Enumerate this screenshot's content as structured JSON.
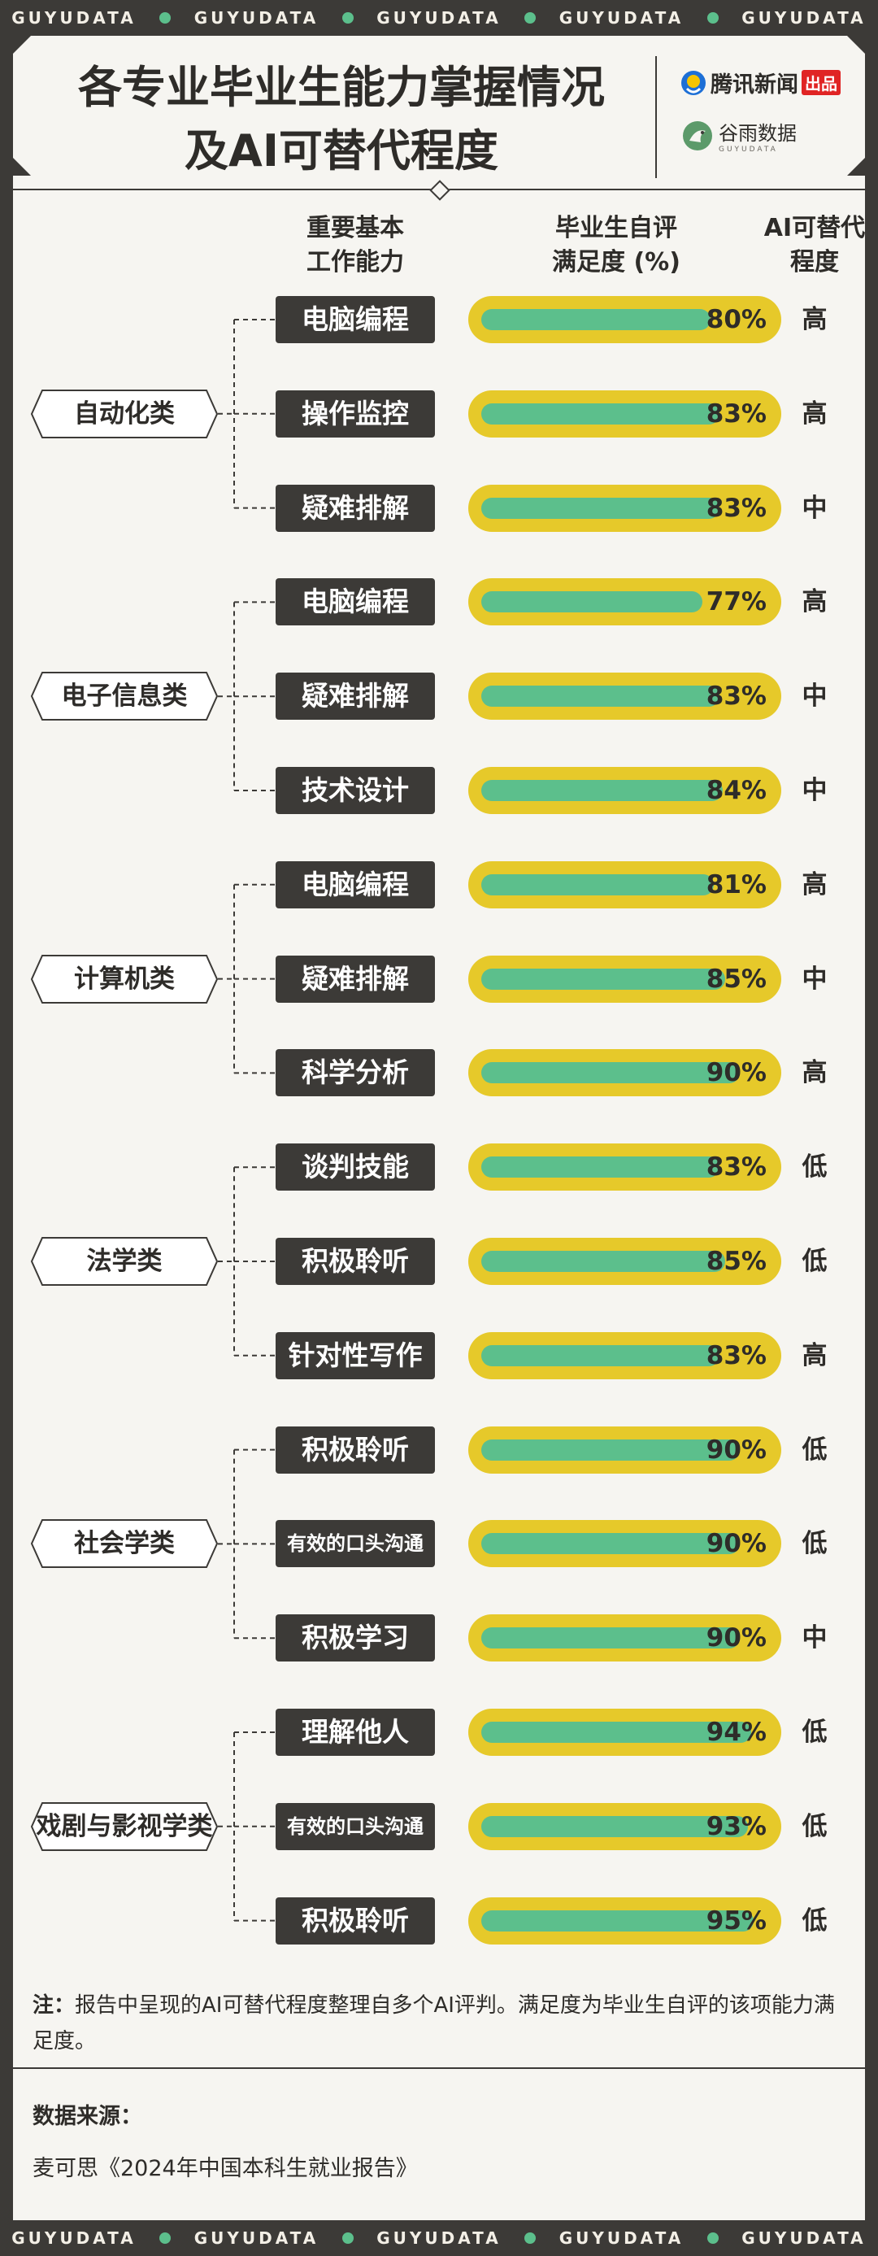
{
  "brand_band": {
    "text": "GUYUDATA",
    "repeat": 5,
    "dot_color": "#5cbf8c"
  },
  "header": {
    "title_line1": "各专业毕业生能力掌握情况",
    "title_line2": "及AI可替代程度",
    "logo1_text": "腾讯新闻",
    "logo1_badge": "出品",
    "logo2_text": "谷雨数据",
    "logo2_sub": "GUYUDATA"
  },
  "columns": {
    "skill_header_1": "重要基本",
    "skill_header_2": "工作能力",
    "score_header_1": "毕业生自评",
    "score_header_2": "满足度 (%)",
    "ai_header_1": "AI可替代",
    "ai_header_2": "程度"
  },
  "colors": {
    "bar_bg": "#e6c92a",
    "bar_fill": "#5cbf8c",
    "dark": "#3c3a37"
  },
  "chart_data": {
    "type": "bar",
    "title": "各专业毕业生能力掌握情况及AI可替代程度",
    "xlabel": "",
    "ylabel": "毕业生自评满足度 (%)",
    "ylim": [
      0,
      100
    ],
    "groups": [
      {
        "category": "自动化类",
        "items": [
          {
            "skill": "电脑编程",
            "value": 80,
            "label": "80%",
            "ai": "高"
          },
          {
            "skill": "操作监控",
            "value": 83,
            "label": "83%",
            "ai": "高"
          },
          {
            "skill": "疑难排解",
            "value": 83,
            "label": "83%",
            "ai": "中"
          }
        ]
      },
      {
        "category": "电子信息类",
        "items": [
          {
            "skill": "电脑编程",
            "value": 77,
            "label": "77%",
            "ai": "高"
          },
          {
            "skill": "疑难排解",
            "value": 83,
            "label": "83%",
            "ai": "中"
          },
          {
            "skill": "技术设计",
            "value": 84,
            "label": "84%",
            "ai": "中"
          }
        ]
      },
      {
        "category": "计算机类",
        "items": [
          {
            "skill": "电脑编程",
            "value": 81,
            "label": "81%",
            "ai": "高"
          },
          {
            "skill": "疑难排解",
            "value": 85,
            "label": "85%",
            "ai": "中"
          },
          {
            "skill": "科学分析",
            "value": 90,
            "label": "90%",
            "ai": "高"
          }
        ]
      },
      {
        "category": "法学类",
        "items": [
          {
            "skill": "谈判技能",
            "value": 83,
            "label": "83%",
            "ai": "低"
          },
          {
            "skill": "积极聆听",
            "value": 85,
            "label": "85%",
            "ai": "低"
          },
          {
            "skill": "针对性写作",
            "value": 83,
            "label": "83%",
            "ai": "高"
          }
        ]
      },
      {
        "category": "社会学类",
        "items": [
          {
            "skill": "积极聆听",
            "value": 90,
            "label": "90%",
            "ai": "低"
          },
          {
            "skill": "有效的口头沟通",
            "value": 90,
            "label": "90%",
            "ai": "低"
          },
          {
            "skill": "积极学习",
            "value": 90,
            "label": "90%",
            "ai": "中"
          }
        ]
      },
      {
        "category": "戏剧与影视学类",
        "items": [
          {
            "skill": "理解他人",
            "value": 94,
            "label": "94%",
            "ai": "低"
          },
          {
            "skill": "有效的口头沟通",
            "value": 93,
            "label": "93%",
            "ai": "低"
          },
          {
            "skill": "积极聆听",
            "value": 95,
            "label": "95%",
            "ai": "低"
          }
        ]
      }
    ]
  },
  "note": {
    "label": "注：",
    "text": "报告中呈现的AI可替代程度整理自多个AI评判。满足度为毕业生自评的该项能力满足度。"
  },
  "source": {
    "title": "数据来源：",
    "text": "麦可思《2024年中国本科生就业报告》"
  }
}
